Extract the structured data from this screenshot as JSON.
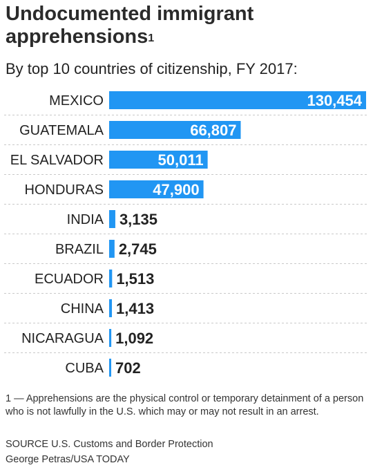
{
  "header": {
    "title": "Undocumented immigrant apprehensions",
    "title_note_marker": "1",
    "subtitle": "By top 10 countries of citizenship, FY 2017:"
  },
  "chart_data": {
    "type": "bar",
    "orientation": "horizontal",
    "categories": [
      "MEXICO",
      "GUATEMALA",
      "EL SALVADOR",
      "HONDURAS",
      "INDIA",
      "BRAZIL",
      "ECUADOR",
      "CHINA",
      "NICARAGUA",
      "CUBA"
    ],
    "values": [
      130454,
      66807,
      50011,
      47900,
      3135,
      2745,
      1513,
      1413,
      1092,
      702
    ],
    "value_labels": [
      "130,454",
      "66,807",
      "50,011",
      "47,900",
      "3,135",
      "2,745",
      "1,513",
      "1,413",
      "1,092",
      "702"
    ],
    "bar_color": "#2196f3",
    "xlim": [
      0,
      130454
    ]
  },
  "footer": {
    "footnote": "1 — Apprehensions are the physical control or temporary detainment of a person who is not lawfully in the U.S. which may or may not result in an arrest.",
    "source": "SOURCE U.S. Customs and Border Protection",
    "credit": "George Petras/USA TODAY"
  }
}
